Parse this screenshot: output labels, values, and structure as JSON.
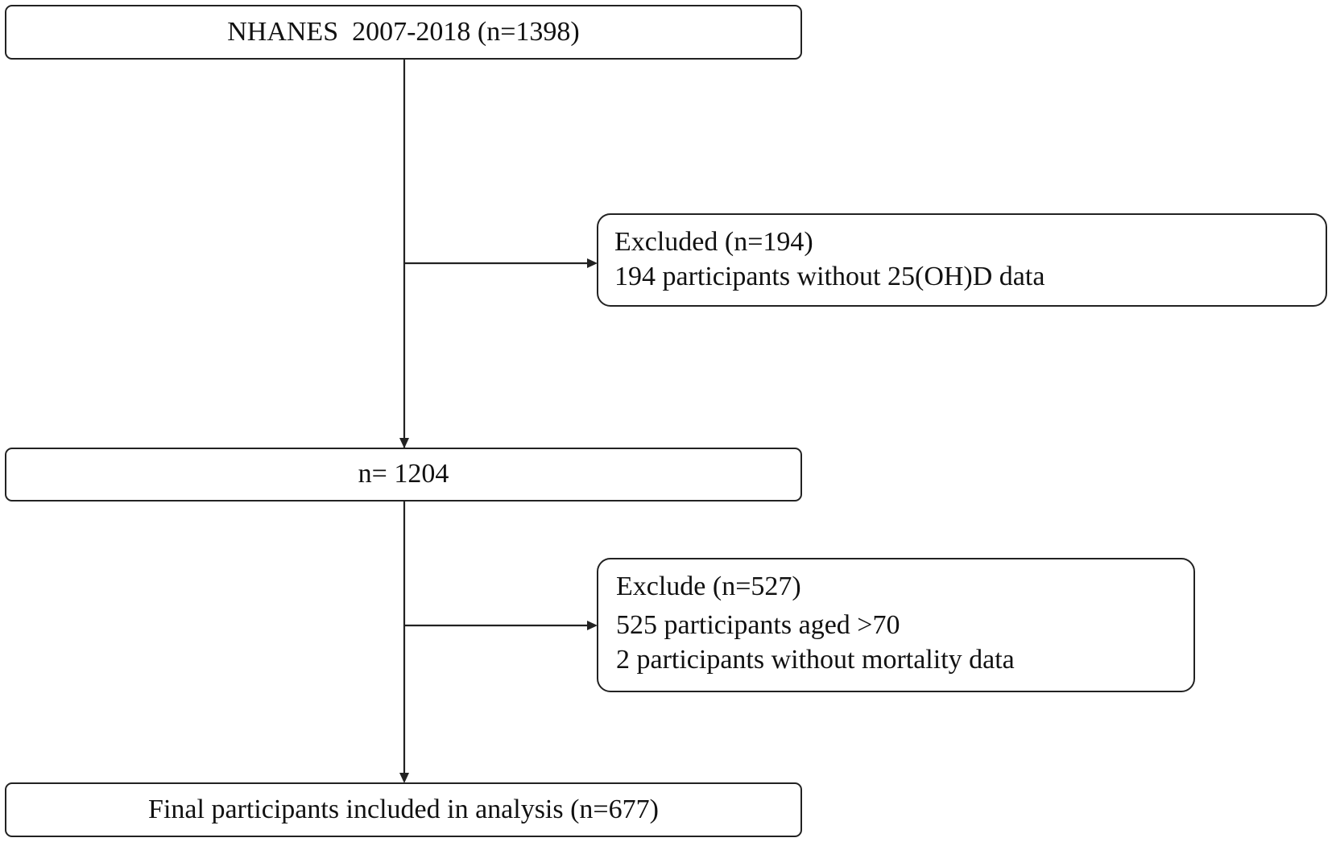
{
  "nodes": [
    {
      "label": "NHANES  2007-2018 (n=1398)"
    },
    {
      "title": "Excluded (n=194)",
      "lines": [
        "194 participants without 25(OH)D data"
      ]
    },
    {
      "label": "n= 1204"
    },
    {
      "title": "Exclude (n=527)",
      "lines": [
        "525 participants aged >70",
        "2 participants without mortality data"
      ]
    },
    {
      "label": "Final participants included in analysis (n=677)"
    }
  ]
}
